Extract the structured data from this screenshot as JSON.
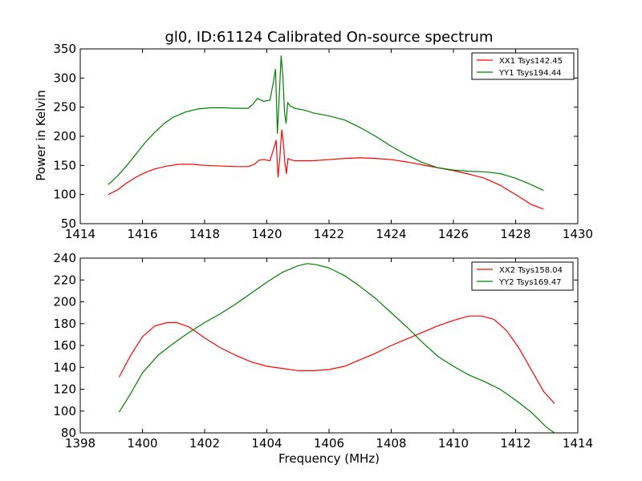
{
  "chart_data": [
    {
      "type": "line",
      "title": "gl0, ID:61124 Calibrated On-source spectrum",
      "xlabel": "",
      "ylabel": "Power in Kelvin",
      "xlim": [
        1414,
        1430
      ],
      "ylim": [
        50,
        350
      ],
      "xticks": [
        "1414",
        "1416",
        "1418",
        "1420",
        "1422",
        "1424",
        "1426",
        "1428",
        "1430"
      ],
      "yticks": [
        "50",
        "100",
        "150",
        "200",
        "250",
        "300",
        "350"
      ],
      "grid": false,
      "legend_position": "top-right",
      "series": [
        {
          "name": "XX1 Tsys142.45",
          "color": "#ff0000",
          "points": [
            [
              1414.9,
              100
            ],
            [
              1415.2,
              108
            ],
            [
              1415.5,
              120
            ],
            [
              1415.8,
              130
            ],
            [
              1416.1,
              138
            ],
            [
              1416.4,
              144
            ],
            [
              1416.8,
              149
            ],
            [
              1417.2,
              152
            ],
            [
              1417.6,
              152
            ],
            [
              1418.0,
              150
            ],
            [
              1418.5,
              149
            ],
            [
              1419.0,
              148
            ],
            [
              1419.4,
              148
            ],
            [
              1419.6,
              152
            ],
            [
              1419.75,
              159
            ],
            [
              1419.9,
              160
            ],
            [
              1420.1,
              158
            ],
            [
              1420.2,
              175
            ],
            [
              1420.3,
              193
            ],
            [
              1420.36,
              130
            ],
            [
              1420.42,
              165
            ],
            [
              1420.48,
              211
            ],
            [
              1420.53,
              190
            ],
            [
              1420.58,
              155
            ],
            [
              1420.63,
              136
            ],
            [
              1420.68,
              162
            ],
            [
              1420.75,
              160
            ],
            [
              1420.9,
              158
            ],
            [
              1421.1,
              158
            ],
            [
              1421.5,
              158
            ],
            [
              1422.0,
              160
            ],
            [
              1422.5,
              162
            ],
            [
              1423.0,
              163
            ],
            [
              1423.5,
              162
            ],
            [
              1424.0,
              160
            ],
            [
              1424.5,
              156
            ],
            [
              1425.0,
              151
            ],
            [
              1425.5,
              146
            ],
            [
              1426.0,
              141
            ],
            [
              1426.5,
              135
            ],
            [
              1427.0,
              128
            ],
            [
              1427.5,
              116
            ],
            [
              1428.0,
              100
            ],
            [
              1428.5,
              83
            ],
            [
              1428.9,
              75
            ]
          ]
        },
        {
          "name": "YY1 Tsys194.44",
          "color": "#008000",
          "points": [
            [
              1414.9,
              117
            ],
            [
              1415.2,
              132
            ],
            [
              1415.5,
              150
            ],
            [
              1415.8,
              170
            ],
            [
              1416.1,
              190
            ],
            [
              1416.4,
              207
            ],
            [
              1416.7,
              222
            ],
            [
              1417.0,
              233
            ],
            [
              1417.4,
              242
            ],
            [
              1417.8,
              247
            ],
            [
              1418.2,
              249
            ],
            [
              1418.6,
              249
            ],
            [
              1419.0,
              248
            ],
            [
              1419.4,
              248
            ],
            [
              1419.55,
              255
            ],
            [
              1419.7,
              265
            ],
            [
              1419.9,
              260
            ],
            [
              1420.1,
              262
            ],
            [
              1420.2,
              290
            ],
            [
              1420.28,
              315
            ],
            [
              1420.34,
              205
            ],
            [
              1420.4,
              270
            ],
            [
              1420.46,
              338
            ],
            [
              1420.52,
              300
            ],
            [
              1420.57,
              240
            ],
            [
              1420.62,
              222
            ],
            [
              1420.67,
              258
            ],
            [
              1420.75,
              252
            ],
            [
              1420.9,
              248
            ],
            [
              1421.2,
              245
            ],
            [
              1421.5,
              240
            ],
            [
              1422.0,
              235
            ],
            [
              1422.5,
              228
            ],
            [
              1423.0,
              215
            ],
            [
              1423.5,
              200
            ],
            [
              1424.0,
              183
            ],
            [
              1424.5,
              168
            ],
            [
              1425.0,
              155
            ],
            [
              1425.5,
              146
            ],
            [
              1426.0,
              142
            ],
            [
              1426.5,
              140
            ],
            [
              1427.0,
              139
            ],
            [
              1427.5,
              136
            ],
            [
              1428.0,
              128
            ],
            [
              1428.5,
              117
            ],
            [
              1428.9,
              107
            ]
          ]
        }
      ]
    },
    {
      "type": "line",
      "title": "",
      "xlabel": "Frequency (MHz)",
      "ylabel": "",
      "xlim": [
        1398,
        1414
      ],
      "ylim": [
        80,
        240
      ],
      "xticks": [
        "1398",
        "1400",
        "1402",
        "1404",
        "1406",
        "1408",
        "1410",
        "1412",
        "1414"
      ],
      "yticks": [
        "80",
        "100",
        "120",
        "140",
        "160",
        "180",
        "200",
        "220",
        "240"
      ],
      "grid": false,
      "legend_position": "top-right",
      "series": [
        {
          "name": "XX2 Tsys158.04",
          "color": "#ff0000",
          "points": [
            [
              1399.25,
              131
            ],
            [
              1399.6,
              150
            ],
            [
              1400.0,
              168
            ],
            [
              1400.4,
              178
            ],
            [
              1400.8,
              181
            ],
            [
              1401.1,
              181
            ],
            [
              1401.5,
              177
            ],
            [
              1402.0,
              167
            ],
            [
              1402.5,
              158
            ],
            [
              1403.0,
              151
            ],
            [
              1403.5,
              145
            ],
            [
              1404.0,
              141
            ],
            [
              1404.5,
              139
            ],
            [
              1405.0,
              137
            ],
            [
              1405.5,
              137
            ],
            [
              1406.0,
              138
            ],
            [
              1406.5,
              141
            ],
            [
              1407.0,
              147
            ],
            [
              1407.5,
              153
            ],
            [
              1408.0,
              160
            ],
            [
              1408.5,
              166
            ],
            [
              1409.0,
              172
            ],
            [
              1409.5,
              178
            ],
            [
              1410.0,
              183
            ],
            [
              1410.5,
              187
            ],
            [
              1410.9,
              187
            ],
            [
              1411.3,
              184
            ],
            [
              1411.7,
              174
            ],
            [
              1412.1,
              158
            ],
            [
              1412.5,
              138
            ],
            [
              1412.9,
              118
            ],
            [
              1413.25,
              107
            ]
          ]
        },
        {
          "name": "YY2 Tsys169.47",
          "color": "#008000",
          "points": [
            [
              1399.25,
              99
            ],
            [
              1399.6,
              115
            ],
            [
              1400.0,
              135
            ],
            [
              1400.5,
              151
            ],
            [
              1401.0,
              162
            ],
            [
              1401.5,
              172
            ],
            [
              1402.0,
              181
            ],
            [
              1402.5,
              189
            ],
            [
              1403.0,
              198
            ],
            [
              1403.5,
              208
            ],
            [
              1404.0,
              218
            ],
            [
              1404.5,
              227
            ],
            [
              1405.0,
              233
            ],
            [
              1405.3,
              235
            ],
            [
              1405.6,
              234
            ],
            [
              1406.0,
              231
            ],
            [
              1406.5,
              224
            ],
            [
              1407.0,
              214
            ],
            [
              1407.5,
              203
            ],
            [
              1408.0,
              190
            ],
            [
              1408.5,
              177
            ],
            [
              1409.0,
              163
            ],
            [
              1409.5,
              150
            ],
            [
              1410.0,
              141
            ],
            [
              1410.5,
              133
            ],
            [
              1411.0,
              127
            ],
            [
              1411.5,
              120
            ],
            [
              1412.0,
              110
            ],
            [
              1412.5,
              99
            ],
            [
              1413.0,
              85
            ],
            [
              1413.25,
              80
            ]
          ]
        }
      ]
    }
  ]
}
